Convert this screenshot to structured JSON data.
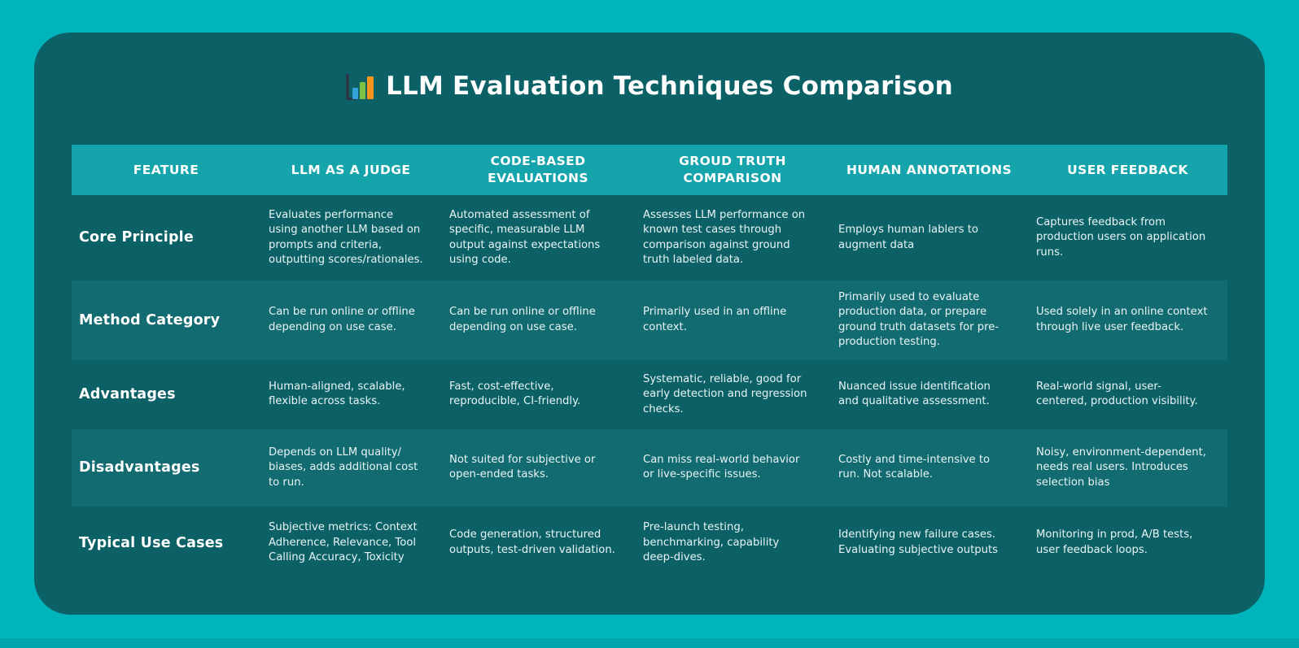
{
  "page": {
    "title": "LLM Evaluation Techniques Comparison",
    "title_icon": "bar-chart-icon"
  },
  "colors": {
    "background": "#00b4bb",
    "card": "#0c6167",
    "header_band": "#15a4ab",
    "alt_row_band": "#126b71",
    "text_primary": "#ffffff",
    "text_body": "#e8f4f4",
    "icon_bar_blue": "#33a3dc",
    "icon_bar_green": "#7dc242",
    "icon_bar_orange": "#f7941e",
    "icon_axis": "#2b3848"
  },
  "chart_data": {
    "type": "table",
    "title": "LLM Evaluation Techniques Comparison",
    "layout": "header row in bright teal on dark teal card; alternating row bands on rows 2 and 4; first column holds row feature labels",
    "columns": [
      "FEATURE",
      "LLM AS A JUDGE",
      "CODE-BASED EVALUATIONS",
      "GROUD TRUTH COMPARISON",
      "HUMAN ANNOTATIONS",
      "USER FEEDBACK"
    ],
    "rows": [
      {
        "feature": "Core Principle",
        "cells": [
          "Evaluates performance using another LLM based on prompts and criteria, outputting scores/rationales.",
          "Automated assessment of specific, measurable LLM output against expectations using code.",
          "Assesses LLM performance on known test cases through comparison against ground truth labeled data.",
          "Employs human lablers to augment data",
          "Captures feedback from production users on application runs."
        ]
      },
      {
        "feature": "Method Category",
        "cells": [
          "Can be run online or offline depending on use case.",
          "Can be run online or offline depending on use case.",
          "Primarily used in an offline context.",
          "Primarily used to evaluate production data, or prepare ground truth datasets for pre-production testing.",
          "Used solely in an online context through live user feedback."
        ]
      },
      {
        "feature": "Advantages",
        "cells": [
          "Human-aligned, scalable, flexible across tasks.",
          "Fast, cost-effective, reproducible, CI-friendly.",
          "Systematic, reliable, good for early detection and regression checks.",
          "Nuanced issue identification and qualitative assessment.",
          "Real-world signal, user-centered, production visibility."
        ]
      },
      {
        "feature": "Disadvantages",
        "cells": [
          "Depends on LLM quality/ biases, adds additional cost to run.",
          "Not suited for subjective or open-ended tasks.",
          "Can miss real-world behavior or live-specific issues.",
          "Costly and time-intensive to run. Not scalable.",
          "Noisy, environment-dependent, needs real users. Introduces selection bias"
        ]
      },
      {
        "feature": "Typical Use Cases",
        "cells": [
          "Subjective metrics: Context Adherence, Relevance, Tool Calling Accuracy, Toxicity",
          "Code generation, structured outputs, test-driven validation.",
          "Pre-launch testing, benchmarking, capability deep-dives.",
          "Identifying new failure cases. Evaluating subjective outputs",
          "Monitoring in prod, A/B tests, user feedback loops."
        ]
      }
    ]
  }
}
